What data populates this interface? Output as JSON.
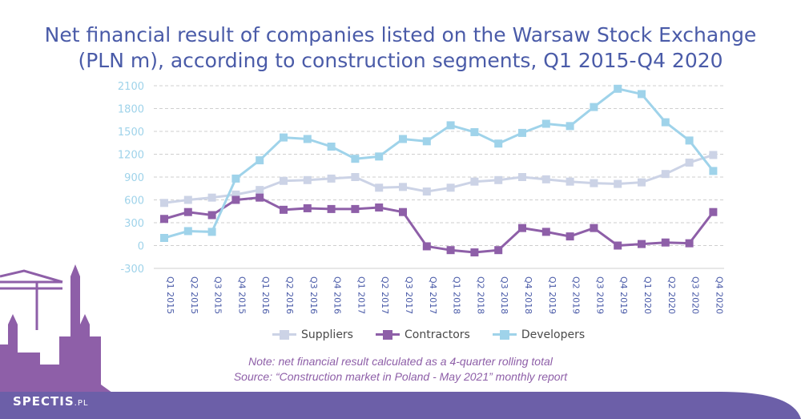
{
  "header": {
    "title_line1": "Net financial result of companies listed on the Warsaw Stock Exchange",
    "title_line2": "(PLN m), according to construction segments, Q1 2015-Q4 2020"
  },
  "footer": {
    "note": "Note: net financial result calculated as a 4-quarter rolling total",
    "source": "Source: “Construction market in Poland - May 2021” monthly report",
    "brand_main": "SPECTIS",
    "brand_suffix": ".PL"
  },
  "colors": {
    "suppliers": "#ccd3e6",
    "contractors": "#8e5fa8",
    "developers": "#9fd3ea",
    "title": "#4a5ba8",
    "axis_text": "#9fd3ea",
    "grid": "#cfcfcf",
    "banner": "#6c5fa8"
  },
  "chart_data": {
    "type": "line",
    "title": "Net financial result of companies listed on the Warsaw Stock Exchange (PLN m), according to construction segments, Q1 2015-Q4 2020",
    "categories": [
      "Q1 2015",
      "Q2 2015",
      "Q3 2015",
      "Q4 2015",
      "Q1 2016",
      "Q2 2016",
      "Q3 2016",
      "Q4 2016",
      "Q1 2017",
      "Q2 2017",
      "Q3 2017",
      "Q4 2017",
      "Q1 2018",
      "Q2 2018",
      "Q3 2018",
      "Q4 2018",
      "Q1 2019",
      "Q2 2019",
      "Q3 2019",
      "Q4 2019",
      "Q1 2020",
      "Q2 2020",
      "Q3 2020",
      "Q4 2020"
    ],
    "series": [
      {
        "name": "Suppliers",
        "values": [
          560,
          600,
          630,
          670,
          730,
          850,
          860,
          880,
          900,
          760,
          770,
          710,
          760,
          840,
          860,
          900,
          870,
          840,
          820,
          810,
          830,
          940,
          1090,
          1190
        ]
      },
      {
        "name": "Contractors",
        "values": [
          350,
          440,
          400,
          600,
          630,
          470,
          490,
          480,
          480,
          500,
          440,
          -10,
          -60,
          -90,
          -60,
          230,
          180,
          120,
          230,
          0,
          20,
          40,
          30,
          440
        ]
      },
      {
        "name": "Developers",
        "values": [
          100,
          190,
          180,
          880,
          1120,
          1420,
          1400,
          1300,
          1140,
          1170,
          1400,
          1370,
          1580,
          1490,
          1340,
          1480,
          1600,
          1570,
          1820,
          2060,
          1990,
          1620,
          1380,
          980
        ]
      }
    ],
    "y_ticks": [
      -300,
      0,
      300,
      600,
      900,
      1200,
      1500,
      1800,
      2100
    ],
    "ylim": [
      -300,
      2100
    ],
    "grid": true,
    "legend_position": "bottom"
  }
}
